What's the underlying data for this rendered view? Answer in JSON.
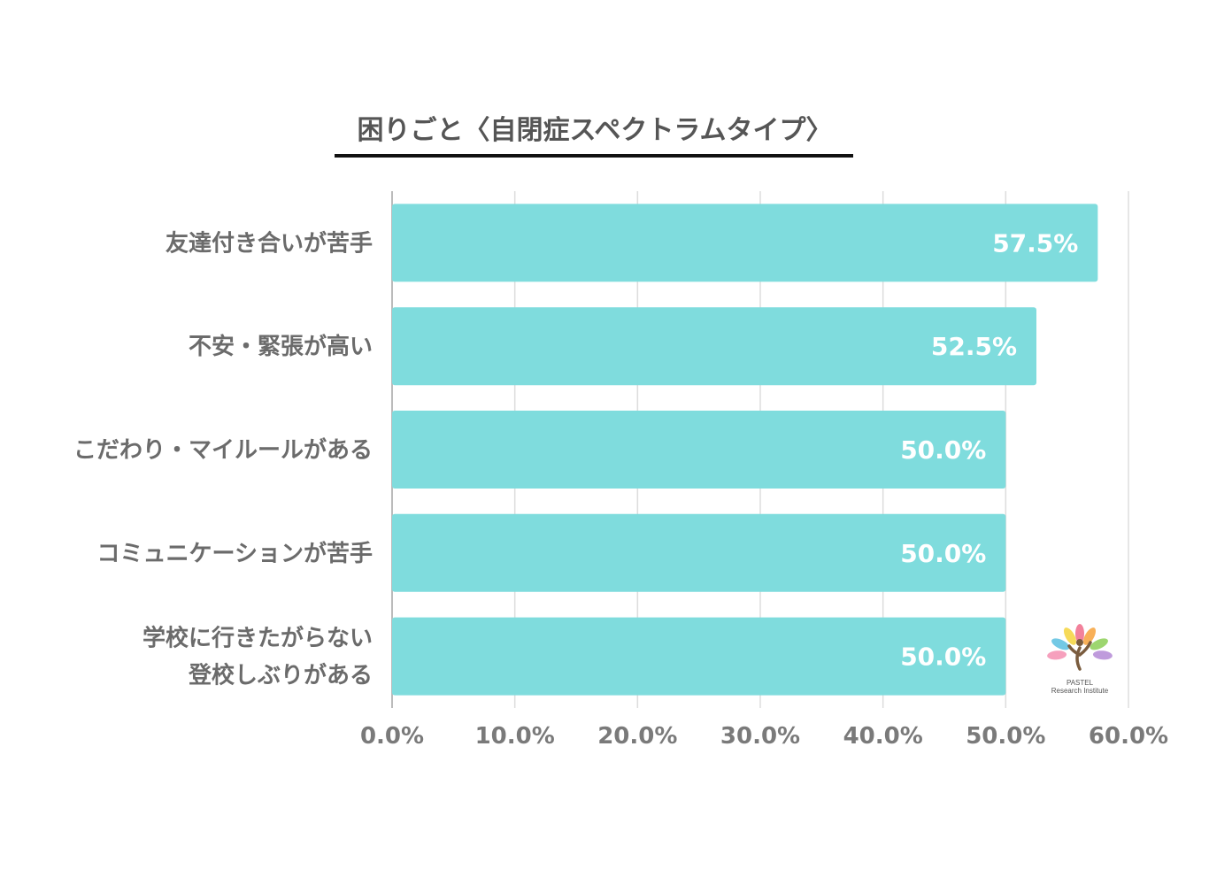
{
  "chart_data": {
    "type": "bar",
    "orientation": "horizontal",
    "title": "困りごと〈自閉症スペクトラムタイプ〉",
    "categories": [
      [
        "友達付き合いが苦手"
      ],
      [
        "不安・緊張が高い"
      ],
      [
        "こだわり・マイルールがある"
      ],
      [
        "コミュニケーションが苦手"
      ],
      [
        "学校に行きたがらない",
        "登校しぶりがある"
      ]
    ],
    "values": [
      57.5,
      52.5,
      50.0,
      50.0,
      50.0
    ],
    "value_labels": [
      "57.5%",
      "52.5%",
      "50.0%",
      "50.0%",
      "50.0%"
    ],
    "xlim": [
      0,
      60
    ],
    "x_ticks": [
      "0.0%",
      "10.0%",
      "20.0%",
      "30.0%",
      "40.0%",
      "50.0%",
      "60.0%"
    ],
    "grid": true,
    "bar_color": "#7fdcdd",
    "grid_color": "#dddddd",
    "axis_color": "#bbbbbb"
  },
  "logo": {
    "line1": "PASTEL",
    "line2": "Research Institute",
    "petal_colors": [
      "#f06b8a",
      "#f7a23b",
      "#f5d33c",
      "#8ccf56",
      "#5bbfe0",
      "#b48ad6",
      "#f48fb1"
    ],
    "figure_color": "#7a5c3e"
  }
}
